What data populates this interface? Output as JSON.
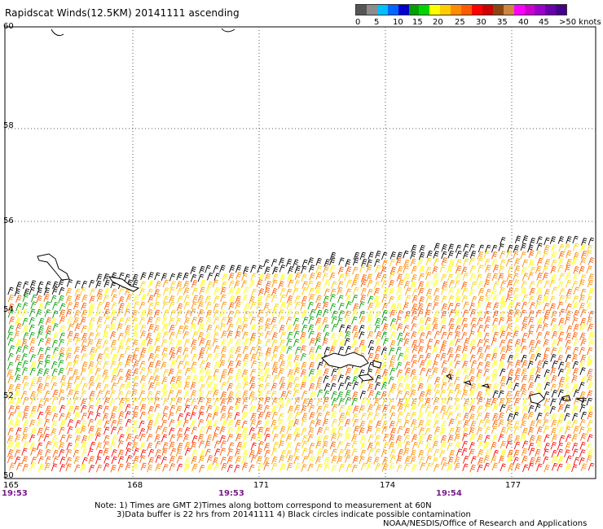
{
  "title": "Rapidscat Winds(12.5KM) 20141111 ascending",
  "legend": {
    "colors": [
      "#555555",
      "#8c8c8c",
      "#00bfff",
      "#0066ff",
      "#0000cc",
      "#00a000",
      "#00d400",
      "#ffff00",
      "#ffcc00",
      "#ff8c00",
      "#ff5a00",
      "#ff0000",
      "#cc0000",
      "#8b4513",
      "#cd853f",
      "#ff00ff",
      "#cc00cc",
      "#9900cc",
      "#6600aa",
      "#440088"
    ],
    "labels": [
      "0",
      "5",
      "10",
      "15",
      "20",
      "25",
      "30",
      "35",
      "40",
      "45",
      ">50 knots"
    ]
  },
  "chart_data": {
    "type": "wind-barb-map",
    "x_axis": {
      "label": "",
      "ticks": [
        "165",
        "168",
        "171",
        "174",
        "177"
      ]
    },
    "y_axis": {
      "label": "",
      "ticks": [
        "50",
        "52",
        "54",
        "56",
        "58",
        "60"
      ]
    },
    "lat_range": [
      50,
      60
    ],
    "lon_range": [
      165,
      179
    ],
    "time_labels": [
      "19:53",
      "19:53",
      "19:54"
    ],
    "wind_speed_units": "knots",
    "wind_speed_range": [
      0,
      50
    ],
    "swath_region": "south of ~54-56N across the whole map",
    "dominant_speed_knots": "20-35",
    "low_speed_zones": [
      "west edge near 54N",
      "around islands near 173E 53N"
    ],
    "contaminated_barbs": "black barbs along swath edge and near islands"
  },
  "notes": {
    "line1": "Note: 1) Times are GMT 2)Times along bottom correspond to measurement at 60N",
    "line2": "3)Data buffer is 22 hrs from 20141111 4) Black circles indicate possible contamination",
    "line3": "NOAA/NESDIS/Office of Research and Applications"
  }
}
